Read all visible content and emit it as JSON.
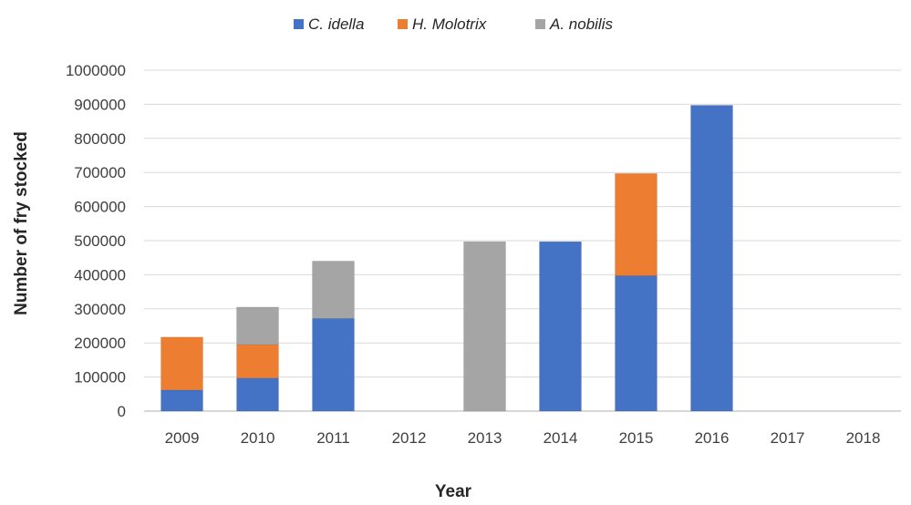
{
  "chart_data": {
    "type": "bar",
    "stacked": true,
    "categories": [
      "2009",
      "2010",
      "2011",
      "2012",
      "2013",
      "2014",
      "2015",
      "2016",
      "2017",
      "2018"
    ],
    "series": [
      {
        "name": "C. idella",
        "color": "#4472c4",
        "values": [
          62000,
          97000,
          272000,
          0,
          0,
          497000,
          397000,
          897000,
          0,
          0
        ]
      },
      {
        "name": "H. Molotrix",
        "color": "#ed7d31",
        "values": [
          155000,
          98000,
          0,
          0,
          0,
          0,
          300000,
          0,
          0,
          0
        ]
      },
      {
        "name": "A. nobilis",
        "color": "#a5a5a5",
        "values": [
          0,
          110000,
          168000,
          0,
          497000,
          0,
          0,
          0,
          0,
          0
        ]
      }
    ],
    "xlabel": "Year",
    "ylabel": "Number of fry stocked",
    "ylim": [
      0,
      1000000
    ],
    "yticks": [
      "0",
      "100000",
      "200000",
      "300000",
      "400000",
      "500000",
      "600000",
      "700000",
      "800000",
      "900000",
      "1000000"
    ],
    "grid": true,
    "legend": "top-center"
  }
}
